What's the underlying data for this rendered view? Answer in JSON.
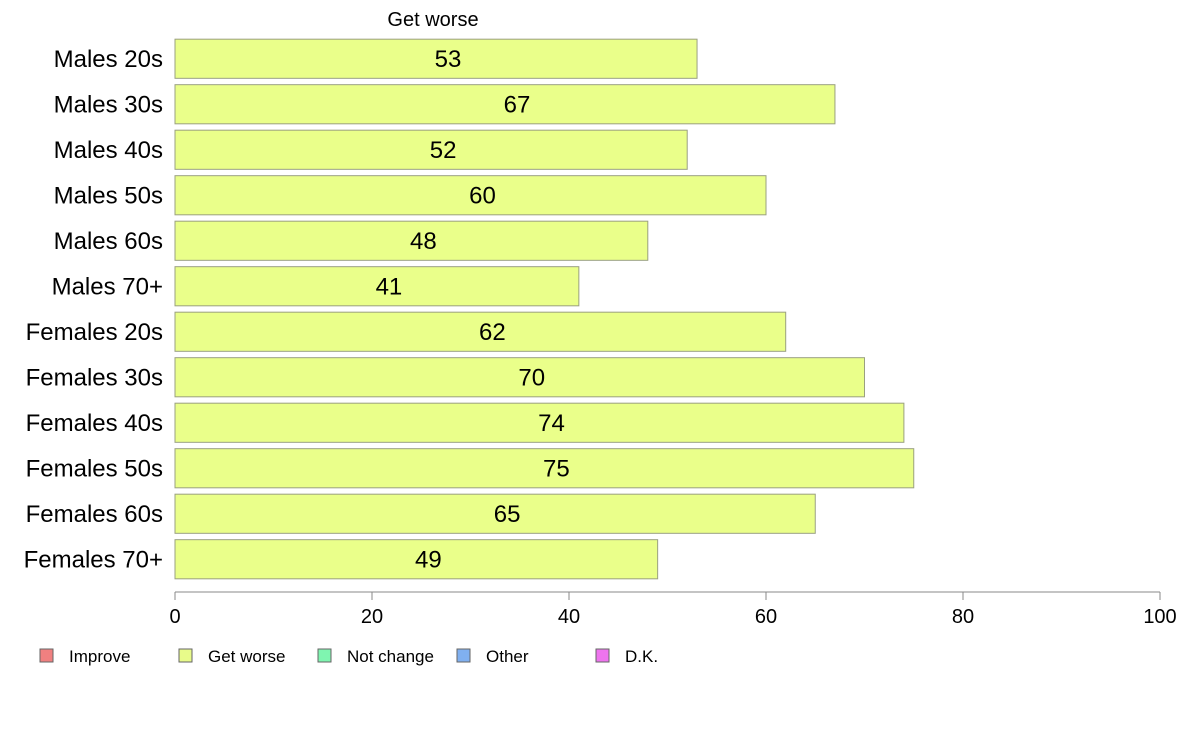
{
  "chart_data": {
    "type": "bar",
    "orientation": "horizontal",
    "header": "Get worse",
    "categories": [
      "Males 20s",
      "Males 30s",
      "Males 40s",
      "Males 50s",
      "Males 60s",
      "Males 70+",
      "Females 20s",
      "Females 30s",
      "Females 40s",
      "Females 50s",
      "Females 60s",
      "Females 70+"
    ],
    "series": [
      {
        "name": "Get worse",
        "values": [
          53,
          67,
          52,
          60,
          48,
          41,
          62,
          70,
          74,
          75,
          65,
          49
        ]
      }
    ],
    "xlim": [
      0,
      100
    ],
    "xticks": [
      0,
      20,
      40,
      60,
      80,
      100
    ],
    "grid": false,
    "legend_position": "bottom-left",
    "legend": [
      {
        "label": "Improve",
        "color": "#f08080"
      },
      {
        "label": "Get worse",
        "color": "#e8fb8a"
      },
      {
        "label": "Not change",
        "color": "#7ff5b0"
      },
      {
        "label": "Other",
        "color": "#80b0f0"
      },
      {
        "label": "D.K.",
        "color": "#ee74ee"
      }
    ],
    "bar_color": "#eaff8a",
    "bar_stroke": "#9aa080"
  }
}
